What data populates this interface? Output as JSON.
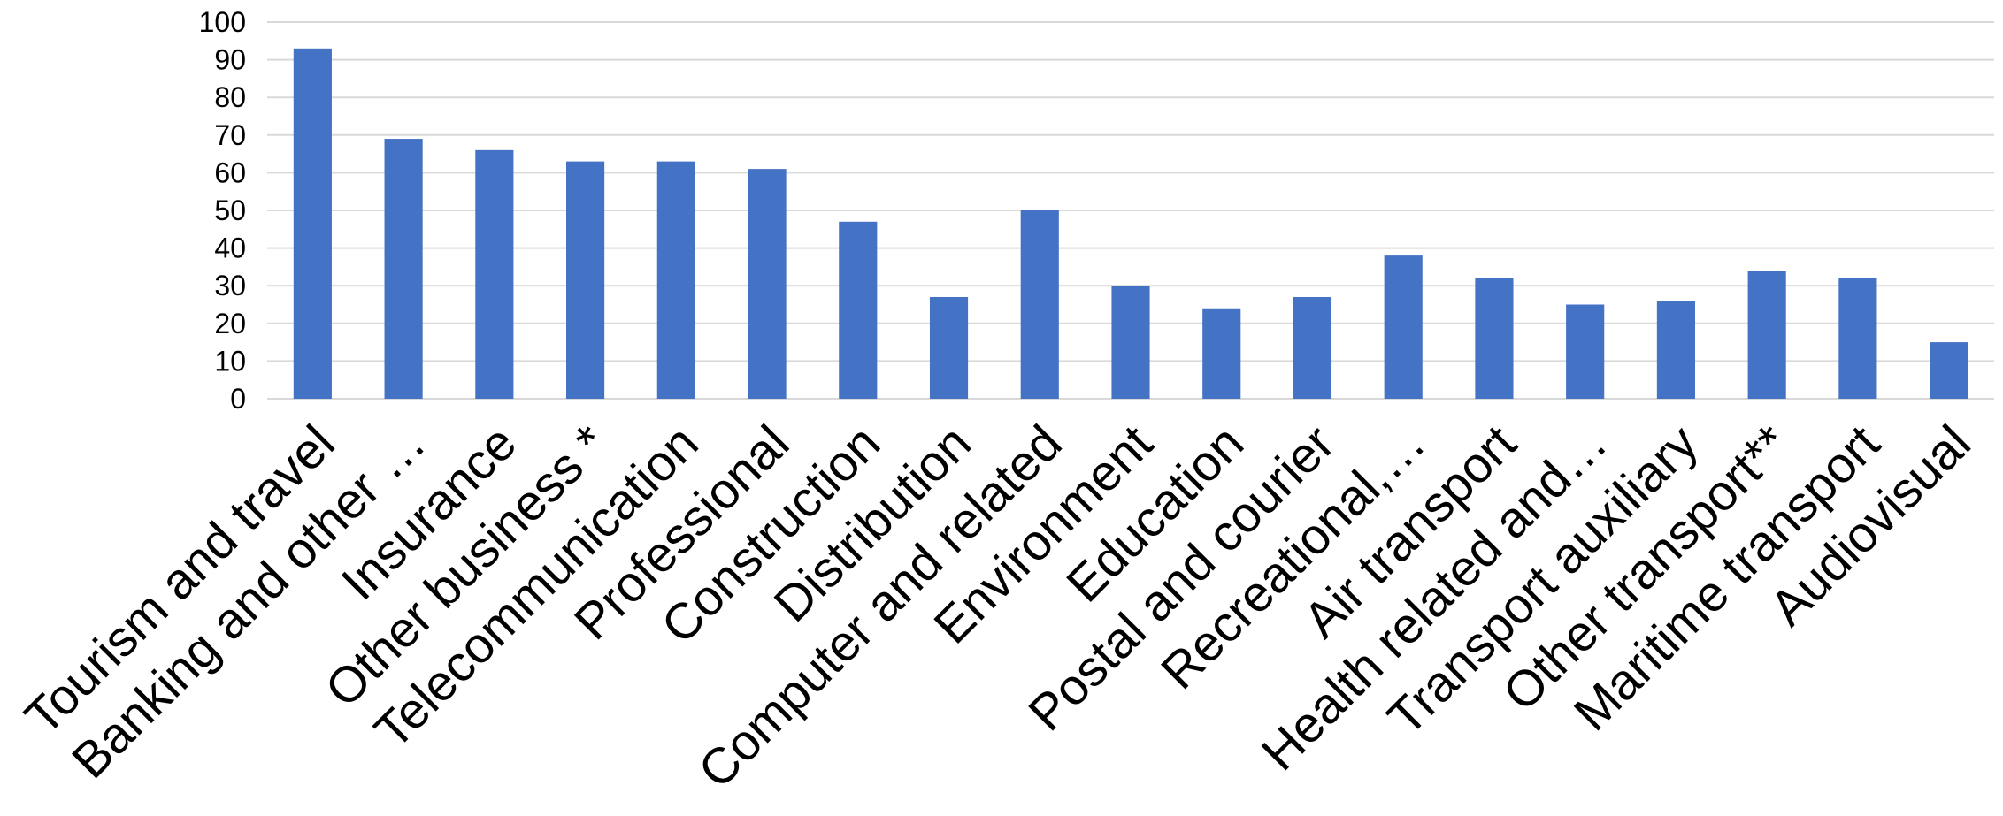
{
  "chart_data": {
    "type": "bar",
    "title": "",
    "xlabel": "",
    "ylabel": "",
    "ylim": [
      0,
      100
    ],
    "yticks": [
      0,
      10,
      20,
      30,
      40,
      50,
      60,
      70,
      80,
      90,
      100
    ],
    "grid": true,
    "legend": "none",
    "bar_color": "#4472C4",
    "categories": [
      "Tourism and travel",
      "Banking and other …",
      "Insurance",
      "Other business *",
      "Telecommunication",
      "Professional",
      "Construction",
      "Distribution",
      "Computer and related",
      "Environment",
      "Education",
      "Postal and courier",
      "Recreational,…",
      "Air transport",
      "Health related and…",
      "Transport auxiliary",
      "Other transport**",
      "Maritime transport",
      "Audiovisual"
    ],
    "values": [
      93,
      69,
      66,
      63,
      63,
      61,
      47,
      27,
      50,
      30,
      24,
      27,
      38,
      32,
      25,
      26,
      34,
      32,
      15
    ]
  }
}
